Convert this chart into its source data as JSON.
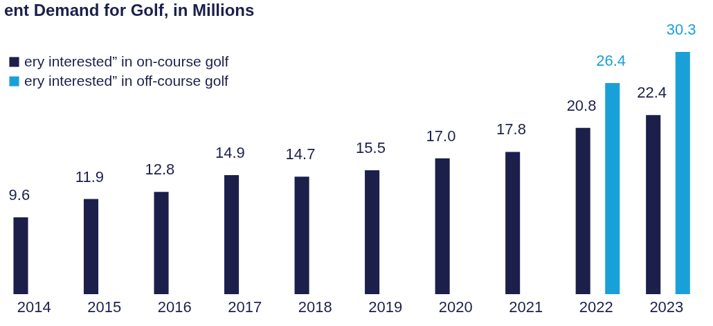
{
  "chart_data": {
    "type": "bar",
    "title": "ent Demand for Golf, in Millions",
    "categories": [
      "2014",
      "2015",
      "2016",
      "2017",
      "2018",
      "2019",
      "2020",
      "2021",
      "2022",
      "2023"
    ],
    "series": [
      {
        "name": "ery interested” in on-course golf",
        "color": "#1b1f4a",
        "values": [
          9.6,
          11.9,
          12.8,
          14.9,
          14.7,
          15.5,
          17.0,
          17.8,
          20.8,
          22.4
        ],
        "value_labels": [
          "9.6",
          "11.9",
          "12.8",
          "14.9",
          "14.7",
          "15.5",
          "17.0",
          "17.8",
          "20.8",
          "22.4"
        ]
      },
      {
        "name": "ery interested” in off-course golf",
        "color": "#1aa0d8",
        "values": [
          null,
          null,
          null,
          null,
          null,
          null,
          null,
          null,
          26.4,
          30.3
        ],
        "value_labels": [
          null,
          null,
          null,
          null,
          null,
          null,
          null,
          null,
          "26.4",
          "30.3"
        ]
      }
    ],
    "legend": "top left",
    "grid": false
  }
}
